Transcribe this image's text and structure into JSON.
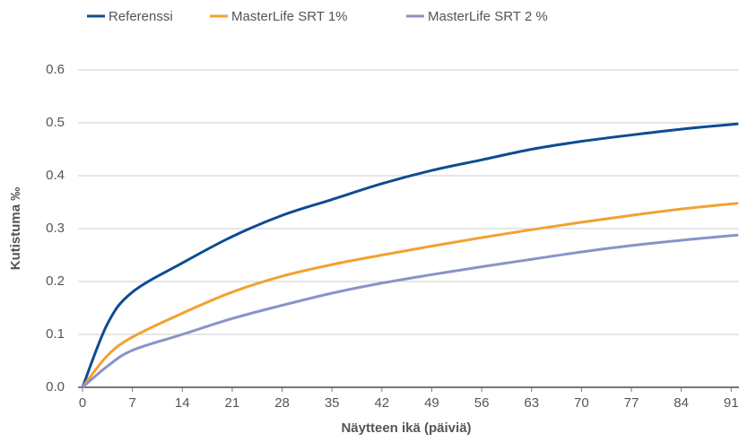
{
  "chart_data": {
    "type": "line",
    "x_label": "Näytteen ikä (päiviä)",
    "y_label": "Kutistuma ‰",
    "x": [
      0,
      3.5,
      7,
      14,
      21,
      28,
      35,
      42,
      49,
      56,
      63,
      70,
      77,
      84,
      92
    ],
    "series": [
      {
        "name": "Referenssi",
        "color": "#0d4c92",
        "values": [
          0,
          0.12,
          0.18,
          0.235,
          0.285,
          0.325,
          0.355,
          0.385,
          0.41,
          0.43,
          0.45,
          0.465,
          0.477,
          0.488,
          0.498
        ]
      },
      {
        "name": "MasterLife SRT 1%",
        "color": "#f3a131",
        "values": [
          0,
          0.06,
          0.095,
          0.14,
          0.18,
          0.21,
          0.232,
          0.25,
          0.267,
          0.283,
          0.298,
          0.312,
          0.325,
          0.337,
          0.348
        ]
      },
      {
        "name": "MasterLife SRT 2 %",
        "color": "#8a93c8",
        "values": [
          0,
          0.04,
          0.07,
          0.1,
          0.13,
          0.155,
          0.178,
          0.197,
          0.213,
          0.228,
          0.242,
          0.256,
          0.268,
          0.278,
          0.288
        ]
      }
    ],
    "xlim": [
      0,
      92.1
    ],
    "xticks": [
      0,
      7,
      14,
      21,
      28,
      35,
      42,
      49,
      56,
      63,
      70,
      77,
      84,
      91
    ],
    "ylim": [
      0,
      0.6
    ],
    "yticks": [
      {
        "value": 0,
        "label": "0.0"
      },
      0.1,
      0.2,
      0.3,
      0.4,
      0.5,
      0.6
    ],
    "grid": true,
    "legend": "top"
  }
}
